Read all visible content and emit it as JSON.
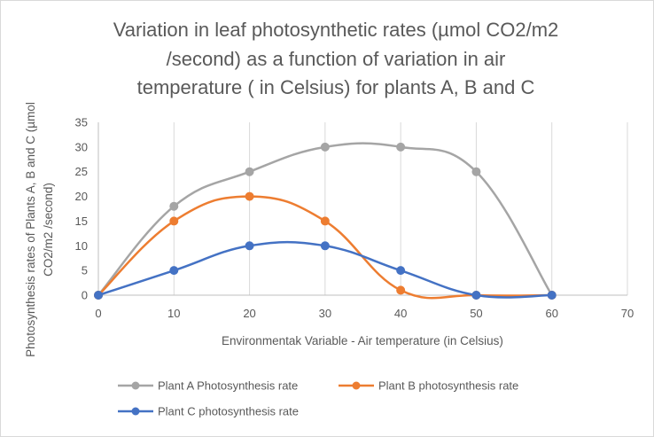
{
  "chart_data": {
    "type": "line",
    "title_lines": [
      "Variation in leaf photosynthetic rates (µmol CO2/m2",
      "/second) as a function of variation in air",
      "temperature ( in Celsius) for plants A, B and C"
    ],
    "xlabel": "Environmentak Variable  - Air temperature (in Celsius)",
    "ylabel_lines": [
      "Photosynthesis rates of Plants A, B and C (µmol",
      "CO2/m2 /second)"
    ],
    "xlim": [
      0,
      70
    ],
    "ylim": [
      0,
      35
    ],
    "x_ticks": [
      0,
      10,
      20,
      30,
      40,
      50,
      60,
      70
    ],
    "y_ticks": [
      0,
      5,
      10,
      15,
      20,
      25,
      30,
      35
    ],
    "grid": "vertical",
    "legend_position": "bottom",
    "series": [
      {
        "name": "Plant A Photosynthesis rate",
        "color": "#a5a5a5",
        "x": [
          0,
          10,
          20,
          30,
          40,
          50,
          60
        ],
        "y": [
          0,
          18,
          25,
          30,
          30,
          25,
          0
        ]
      },
      {
        "name": "Plant B photosynthesis rate",
        "color": "#ed7d31",
        "x": [
          0,
          10,
          20,
          30,
          40,
          50,
          60
        ],
        "y": [
          0,
          15,
          20,
          15,
          1,
          0,
          0
        ]
      },
      {
        "name": "Plant C photosynthesis rate",
        "color": "#4472c4",
        "x": [
          0,
          10,
          20,
          30,
          40,
          50,
          60
        ],
        "y": [
          0,
          5,
          10,
          10,
          5,
          0,
          0
        ]
      }
    ]
  }
}
